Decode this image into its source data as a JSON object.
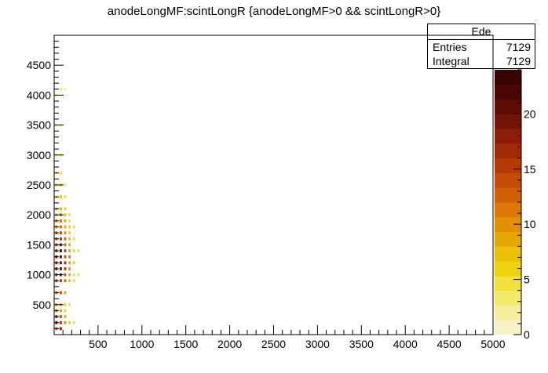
{
  "title": "anodeLongMF:scintLongR {anodeLongMF>0 && scintLongR>0}",
  "stats": {
    "name": "Ede",
    "rows": [
      {
        "label": "Entries",
        "value": "7129"
      },
      {
        "label": "Integral",
        "value": "7129"
      }
    ]
  },
  "chart_data": {
    "type": "heatmap",
    "title": "anodeLongMF:scintLongR {anodeLongMF>0 && scintLongR>0}",
    "xlabel": "",
    "ylabel": "",
    "xlim": [
      0,
      5000
    ],
    "ylim": [
      0,
      5000
    ],
    "x_ticks": [
      "500",
      "1000",
      "1500",
      "2000",
      "2500",
      "3000",
      "3500",
      "4000",
      "4500",
      "5000"
    ],
    "y_ticks": [
      "500",
      "1000",
      "1500",
      "2000",
      "2500",
      "3000",
      "3500",
      "4000",
      "4500"
    ],
    "z_range": [
      0,
      24
    ],
    "z_ticks": [
      "0",
      "5",
      "10",
      "15",
      "20"
    ],
    "entries": 7129,
    "integral": 7129,
    "palette": [
      "#f6f2c8",
      "#f4ee9e",
      "#f2ea6c",
      "#f0e23a",
      "#eed40c",
      "#ecc006",
      "#e8a804",
      "#e49004",
      "#dc7806",
      "#d06006",
      "#c44c06",
      "#b43a06",
      "#a02a06",
      "#8a1e06",
      "#741406",
      "#5e0c04",
      "#4a0604",
      "#380402"
    ],
    "cell_size": [
      25,
      50
    ],
    "cells": [
      [
        25,
        100,
        14
      ],
      [
        75,
        100,
        18
      ],
      [
        25,
        200,
        20
      ],
      [
        75,
        200,
        16
      ],
      [
        125,
        200,
        10
      ],
      [
        175,
        200,
        6
      ],
      [
        225,
        200,
        4
      ],
      [
        25,
        300,
        16
      ],
      [
        75,
        300,
        14
      ],
      [
        125,
        300,
        8
      ],
      [
        25,
        400,
        12
      ],
      [
        75,
        400,
        10
      ],
      [
        125,
        400,
        6
      ],
      [
        25,
        500,
        10
      ],
      [
        75,
        500,
        9
      ],
      [
        125,
        500,
        6
      ],
      [
        175,
        500,
        4
      ],
      [
        25,
        700,
        12
      ],
      [
        75,
        700,
        14
      ],
      [
        125,
        700,
        9
      ],
      [
        25,
        900,
        15
      ],
      [
        75,
        900,
        17
      ],
      [
        125,
        900,
        12
      ],
      [
        175,
        900,
        7
      ],
      [
        225,
        900,
        5
      ],
      [
        25,
        1000,
        17
      ],
      [
        75,
        1000,
        19
      ],
      [
        125,
        1000,
        14
      ],
      [
        175,
        1000,
        8
      ],
      [
        225,
        1000,
        5
      ],
      [
        275,
        1000,
        4
      ],
      [
        25,
        1100,
        18
      ],
      [
        75,
        1100,
        20
      ],
      [
        125,
        1100,
        15
      ],
      [
        175,
        1100,
        10
      ],
      [
        25,
        1200,
        16
      ],
      [
        75,
        1200,
        21
      ],
      [
        125,
        1200,
        16
      ],
      [
        175,
        1200,
        9
      ],
      [
        225,
        1200,
        6
      ],
      [
        25,
        1300,
        19
      ],
      [
        75,
        1300,
        22
      ],
      [
        125,
        1300,
        14
      ],
      [
        175,
        1300,
        11
      ],
      [
        25,
        1400,
        17
      ],
      [
        75,
        1400,
        23
      ],
      [
        125,
        1400,
        15
      ],
      [
        175,
        1400,
        8
      ],
      [
        225,
        1400,
        6
      ],
      [
        275,
        1400,
        4
      ],
      [
        25,
        1500,
        15
      ],
      [
        75,
        1500,
        19
      ],
      [
        125,
        1500,
        13
      ],
      [
        175,
        1500,
        9
      ],
      [
        25,
        1600,
        13
      ],
      [
        75,
        1600,
        17
      ],
      [
        125,
        1600,
        12
      ],
      [
        175,
        1600,
        7
      ],
      [
        225,
        1600,
        5
      ],
      [
        25,
        1700,
        12
      ],
      [
        75,
        1700,
        15
      ],
      [
        125,
        1700,
        10
      ],
      [
        175,
        1700,
        6
      ],
      [
        25,
        1800,
        11
      ],
      [
        75,
        1800,
        13
      ],
      [
        125,
        1800,
        9
      ],
      [
        175,
        1800,
        6
      ],
      [
        225,
        1800,
        4
      ],
      [
        25,
        1900,
        10
      ],
      [
        75,
        1900,
        12
      ],
      [
        125,
        1900,
        8
      ],
      [
        175,
        1900,
        5
      ],
      [
        25,
        2000,
        9
      ],
      [
        75,
        2000,
        11
      ],
      [
        125,
        2000,
        7
      ],
      [
        175,
        2000,
        4
      ],
      [
        25,
        2100,
        8
      ],
      [
        75,
        2100,
        9
      ],
      [
        125,
        2100,
        6
      ],
      [
        25,
        2300,
        6
      ],
      [
        75,
        2300,
        7
      ],
      [
        125,
        2300,
        4
      ],
      [
        25,
        2500,
        5
      ],
      [
        75,
        2500,
        6
      ],
      [
        125,
        2500,
        3
      ],
      [
        25,
        2700,
        4
      ],
      [
        75,
        2700,
        4
      ],
      [
        25,
        3000,
        3
      ],
      [
        75,
        3000,
        3
      ],
      [
        25,
        3500,
        2
      ],
      [
        75,
        3500,
        2
      ],
      [
        25,
        4000,
        2
      ],
      [
        75,
        4100,
        3
      ],
      [
        125,
        4100,
        2
      ]
    ]
  }
}
